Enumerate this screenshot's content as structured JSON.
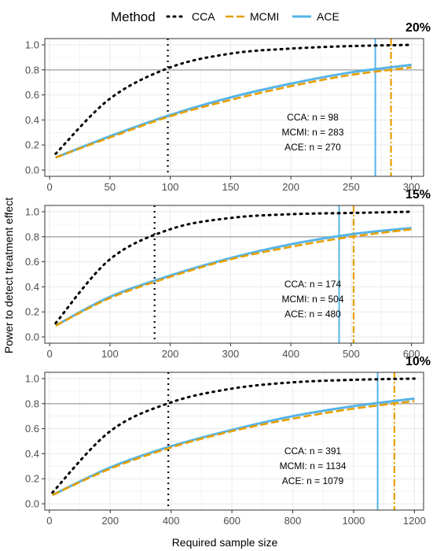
{
  "legend": {
    "title": "Method",
    "entries": [
      {
        "name": "CCA",
        "style": "dotted",
        "color": "#000000"
      },
      {
        "name": "MCMI",
        "style": "dashed",
        "color": "#E69F00"
      },
      {
        "name": "ACE",
        "style": "solid",
        "color": "#56B4E9"
      }
    ]
  },
  "xlabel": "Required sample size",
  "ylabel": "Power to detect treatment effect",
  "colors": {
    "CCA": "#000000",
    "MCMI": "#E69F00",
    "ACE": "#56B4E9",
    "reference": "#b3b3b3",
    "grid": "#ebebeb",
    "border": "#333333"
  },
  "chart_data": [
    {
      "type": "line",
      "panel_label": "20%",
      "xlim": [
        -4,
        310
      ],
      "ylim": [
        -0.05,
        1.05
      ],
      "xticks": [
        0,
        50,
        100,
        150,
        200,
        250,
        300
      ],
      "yticks": [
        0.0,
        0.2,
        0.4,
        0.6,
        0.8,
        1.0
      ],
      "ytick_labels": [
        "0.0",
        "0.2",
        "0.4",
        "0.6",
        "0.8",
        "1.0"
      ],
      "reference_y": 0.8,
      "x": [
        5,
        50,
        100,
        150,
        200,
        250,
        300
      ],
      "series": [
        {
          "name": "CCA",
          "values": [
            0.13,
            0.57,
            0.82,
            0.93,
            0.97,
            0.99,
            1.0
          ]
        },
        {
          "name": "MCMI",
          "values": [
            0.1,
            0.26,
            0.43,
            0.56,
            0.67,
            0.76,
            0.82
          ]
        },
        {
          "name": "ACE",
          "values": [
            0.1,
            0.27,
            0.44,
            0.58,
            0.69,
            0.78,
            0.84
          ]
        }
      ],
      "required_n": [
        {
          "name": "CCA",
          "value": 98
        },
        {
          "name": "MCMI",
          "value": 283
        },
        {
          "name": "ACE",
          "value": 270
        }
      ],
      "annotations": [
        "CCA: n = 98",
        "MCMI: n = 283",
        "ACE: n = 270"
      ]
    },
    {
      "type": "line",
      "panel_label": "15%",
      "xlim": [
        -8,
        620
      ],
      "ylim": [
        -0.05,
        1.05
      ],
      "xticks": [
        0,
        100,
        200,
        300,
        400,
        500,
        600
      ],
      "yticks": [
        0.0,
        0.2,
        0.4,
        0.6,
        0.8,
        1.0
      ],
      "ytick_labels": [
        "0.0",
        "0.2",
        "0.4",
        "0.6",
        "0.8",
        "1.0"
      ],
      "reference_y": 0.8,
      "x": [
        10,
        100,
        200,
        300,
        400,
        500,
        600
      ],
      "series": [
        {
          "name": "CCA",
          "values": [
            0.11,
            0.62,
            0.86,
            0.95,
            0.98,
            0.99,
            1.0
          ]
        },
        {
          "name": "MCMI",
          "values": [
            0.09,
            0.31,
            0.48,
            0.62,
            0.72,
            0.8,
            0.86
          ]
        },
        {
          "name": "ACE",
          "values": [
            0.09,
            0.32,
            0.49,
            0.63,
            0.74,
            0.82,
            0.87
          ]
        }
      ],
      "required_n": [
        {
          "name": "CCA",
          "value": 174
        },
        {
          "name": "MCMI",
          "value": 504
        },
        {
          "name": "ACE",
          "value": 480
        }
      ],
      "annotations": [
        "CCA: n = 174",
        "MCMI: n = 504",
        "ACE: n = 480"
      ]
    },
    {
      "type": "line",
      "panel_label": "10%",
      "xlim": [
        -15,
        1230
      ],
      "ylim": [
        -0.05,
        1.05
      ],
      "xticks": [
        0,
        200,
        400,
        600,
        800,
        1000,
        1200
      ],
      "yticks": [
        0.0,
        0.2,
        0.4,
        0.6,
        0.8,
        1.0
      ],
      "ytick_labels": [
        "0.0",
        "0.2",
        "0.4",
        "0.6",
        "0.8",
        "1.0"
      ],
      "reference_y": 0.8,
      "x": [
        10,
        200,
        400,
        600,
        800,
        1000,
        1200
      ],
      "series": [
        {
          "name": "CCA",
          "values": [
            0.09,
            0.58,
            0.81,
            0.92,
            0.97,
            0.99,
            1.0
          ]
        },
        {
          "name": "MCMI",
          "values": [
            0.07,
            0.28,
            0.45,
            0.58,
            0.68,
            0.76,
            0.82
          ]
        },
        {
          "name": "ACE",
          "values": [
            0.07,
            0.29,
            0.46,
            0.59,
            0.7,
            0.78,
            0.84
          ]
        }
      ],
      "required_n": [
        {
          "name": "CCA",
          "value": 391
        },
        {
          "name": "MCMI",
          "value": 1134
        },
        {
          "name": "ACE",
          "value": 1079
        }
      ],
      "annotations": [
        "CCA: n = 391",
        "MCMI: n = 1134",
        "ACE: n = 1079"
      ]
    }
  ]
}
